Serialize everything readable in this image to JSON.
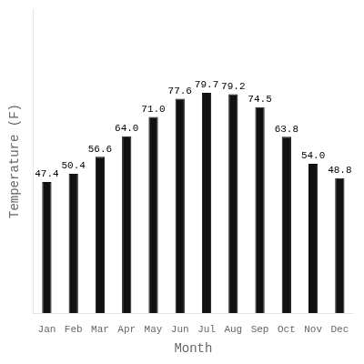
{
  "chart_data": {
    "type": "bar",
    "categories": [
      "Jan",
      "Feb",
      "Mar",
      "Apr",
      "May",
      "Jun",
      "Jul",
      "Aug",
      "Sep",
      "Oct",
      "Nov",
      "Dec"
    ],
    "values": [
      47.4,
      50.4,
      56.6,
      64.0,
      71.0,
      77.6,
      79.7,
      79.2,
      74.5,
      63.8,
      54.0,
      48.8
    ],
    "value_labels": [
      "47.4",
      "50.4",
      "56.6",
      "64.0",
      "71.0",
      "77.6",
      "79.7",
      "79.2",
      "74.5",
      "63.8",
      "54.0",
      "48.8"
    ],
    "color": "#111111",
    "x_label": "Month",
    "y_label": "Temperature (F)",
    "ylim": [
      0,
      110
    ],
    "grid": false,
    "data_labels": true,
    "tick_labels": "x"
  }
}
